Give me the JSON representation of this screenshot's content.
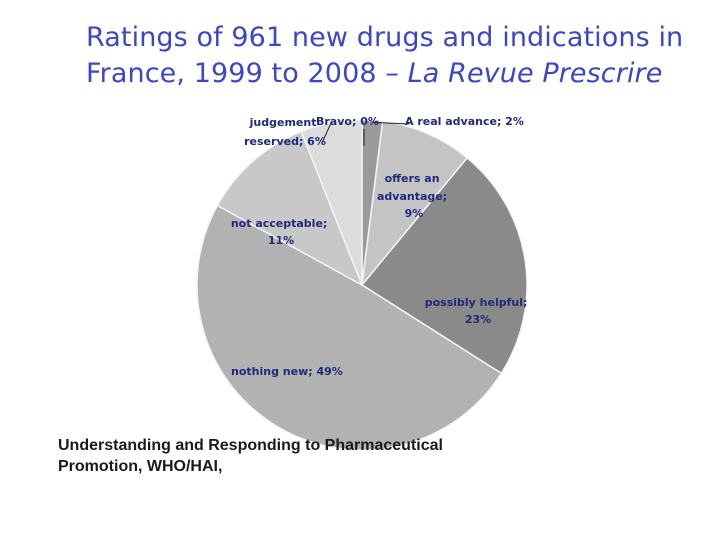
{
  "title": {
    "line1": "Ratings of 961 new drugs and indications in",
    "line2_main": "France, 1999 to 2008 – ",
    "line2_italic": "La Revue Prescrire"
  },
  "source": {
    "line1": "Understanding and Responding to Pharmaceutical",
    "line2": "Promotion, WHO/HAI,"
  },
  "chart_data": {
    "type": "pie",
    "title": "Ratings of 961 new drugs and indications in France, 1999 to 2008 – La Revue Prescrire",
    "unit": "%",
    "slices": [
      {
        "label": "Bravo; 0%",
        "name": "Bravo",
        "value": 0,
        "color": "#e8e8e8"
      },
      {
        "label": "A real advance; 2%",
        "name": "A real advance",
        "value": 2,
        "color": "#9a9a9a"
      },
      {
        "label": "offers an advantage; 9%",
        "name": "offers an advantage",
        "value": 9,
        "color": "#c4c4c4"
      },
      {
        "label": "possibly helpful; 23%",
        "name": "possibly helpful",
        "value": 23,
        "color": "#8a8a8a"
      },
      {
        "label": "nothing new; 49%",
        "name": "nothing new",
        "value": 49,
        "color": "#b2b2b2"
      },
      {
        "label": "not acceptable; 11%",
        "name": "not acceptable",
        "value": 11,
        "color": "#c8c8c8"
      },
      {
        "label": "judgement reserved; 6%",
        "name": "judgement reserved",
        "value": 6,
        "color": "#dcdcdc"
      }
    ],
    "labels_display": {
      "bravo": "Bravo; 0%",
      "real_advance": "A real advance; 2%",
      "advantage": [
        "offers an",
        "advantage;",
        "9%"
      ],
      "helpful": [
        "possibly helpful;",
        "23%"
      ],
      "nothing_new": "nothing new; 49%",
      "not_acceptable": [
        "not acceptable;",
        "11%"
      ],
      "judgement": [
        "judgement",
        "reserved; 6%"
      ]
    }
  }
}
